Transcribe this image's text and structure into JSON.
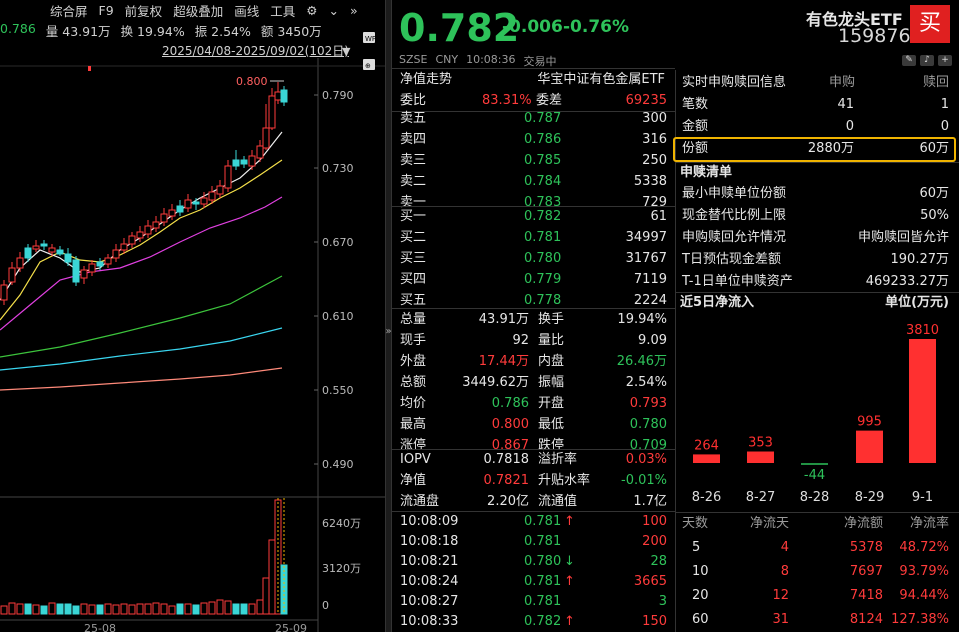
{
  "toolbar": {
    "items": [
      "综合屏",
      "F9",
      "前复权",
      "超级叠加",
      "画线",
      "工具"
    ]
  },
  "stats": {
    "last": "0.786",
    "volume": "量 43.91万",
    "turnover": "换 19.94%",
    "amplitude": "振 2.54%",
    "amount": "额 3450万"
  },
  "daterange": "2025/04/08-2025/09/02(102日)",
  "chart": {
    "price_ticks": [
      "0.790",
      "0.730",
      "0.670",
      "0.610",
      "0.550",
      "0.490"
    ],
    "vol_ticks": [
      "6240万",
      "3120万",
      "0"
    ],
    "max_label": "0.800",
    "x_labels": [
      "25-08",
      "25-09"
    ],
    "type": "candlestick"
  },
  "chart_data": {
    "type": "candlestick",
    "y_ticks": [
      "0.790",
      "0.730",
      "0.670",
      "0.610",
      "0.550",
      "0.490"
    ],
    "volume_ticks": [
      "6240万",
      "3120万",
      "0"
    ],
    "max_label": "0.800",
    "x_labels": [
      "25-08",
      "25-09"
    ]
  },
  "quote": {
    "price": "0.782",
    "change": "-0.006",
    "pct": "-0.76%",
    "exchange": "SZSE",
    "currency": "CNY",
    "time": "10:08:36",
    "status": "交易中",
    "name": "有色龙头ETF",
    "code": "159876",
    "buy_label": "买"
  },
  "book": {
    "title": "净值走势",
    "index_name": "华宝中证有色金属ETF",
    "webi_label": "委比",
    "webi": "83.31%",
    "weicha_label": "委差",
    "weicha": "69235",
    "asks": [
      [
        "卖五",
        "0.787",
        "300"
      ],
      [
        "卖四",
        "0.786",
        "316"
      ],
      [
        "卖三",
        "0.785",
        "250"
      ],
      [
        "卖二",
        "0.784",
        "5338"
      ],
      [
        "卖一",
        "0.783",
        "729"
      ]
    ],
    "bids": [
      [
        "买一",
        "0.782",
        "61"
      ],
      [
        "买二",
        "0.781",
        "34997"
      ],
      [
        "买三",
        "0.780",
        "31767"
      ],
      [
        "买四",
        "0.779",
        "7119"
      ],
      [
        "买五",
        "0.778",
        "2224"
      ]
    ]
  },
  "detail": [
    [
      "总量",
      "43.91万",
      "wh",
      "换手",
      "19.94%",
      "wh"
    ],
    [
      "现手",
      "92",
      "wh",
      "量比",
      "9.09",
      "wh"
    ],
    [
      "外盘",
      "17.44万",
      "up",
      "内盘",
      "26.46万",
      "dn"
    ],
    [
      "总额",
      "3449.62万",
      "wh",
      "振幅",
      "2.54%",
      "wh"
    ],
    [
      "均价",
      "0.786",
      "dn",
      "开盘",
      "0.793",
      "up"
    ],
    [
      "最高",
      "0.800",
      "up",
      "最低",
      "0.780",
      "dn"
    ],
    [
      "涨停",
      "0.867",
      "up",
      "跌停",
      "0.709",
      "dn"
    ]
  ],
  "iopv": [
    [
      "IOPV",
      "0.7818",
      "wh",
      "溢折率",
      "0.03%",
      "up"
    ],
    [
      "净值",
      "0.7821",
      "up",
      "升贴水率",
      "-0.01%",
      "dn"
    ],
    [
      "流通盘",
      "2.20亿",
      "wh",
      "流通值",
      "1.7亿",
      "wh"
    ]
  ],
  "ticks": [
    [
      "10:08:09",
      "0.781",
      "↑",
      "100",
      "up"
    ],
    [
      "10:08:18",
      "0.781",
      "",
      "200",
      "up"
    ],
    [
      "10:08:21",
      "0.780",
      "↓",
      "28",
      "dn"
    ],
    [
      "10:08:24",
      "0.781",
      "↑",
      "3665",
      "up"
    ],
    [
      "10:08:27",
      "0.781",
      "",
      "3",
      "dn"
    ],
    [
      "10:08:33",
      "0.782",
      "↑",
      "150",
      "up"
    ]
  ],
  "sr": {
    "title": "实时申购赎回信息",
    "col1": "申购",
    "col2": "赎回",
    "rows": [
      [
        "笔数",
        "41",
        "1"
      ],
      [
        "金额",
        "0",
        "0"
      ],
      [
        "份额",
        "2880万",
        "60万"
      ]
    ]
  },
  "list": {
    "title": "申赎清单",
    "rows": [
      [
        "最小申赎单位份额",
        "60万"
      ],
      [
        "现金替代比例上限",
        "50%"
      ],
      [
        "申购赎回允许情况",
        "申购赎回皆允许"
      ],
      [
        "T日预估现金差额",
        "190.27万"
      ],
      [
        "T-1日单位申赎资产",
        "469233.27万"
      ]
    ]
  },
  "flow": {
    "title": "近5日净流入",
    "unit": "单位(万元)",
    "dates": [
      "8-26",
      "8-27",
      "8-28",
      "8-29",
      "9-1"
    ],
    "values": [
      264,
      353,
      -44,
      995,
      3810
    ],
    "value_labels": [
      "264",
      "353",
      "-44",
      "995",
      "3810"
    ]
  },
  "summary": {
    "headers": [
      "天数",
      "净流天",
      "净流额",
      "净流率"
    ],
    "rows": [
      [
        "5",
        "4",
        "5378",
        "48.72%"
      ],
      [
        "10",
        "8",
        "7697",
        "93.79%"
      ],
      [
        "20",
        "12",
        "7418",
        "94.44%"
      ],
      [
        "60",
        "31",
        "8124",
        "127.38%"
      ]
    ]
  }
}
